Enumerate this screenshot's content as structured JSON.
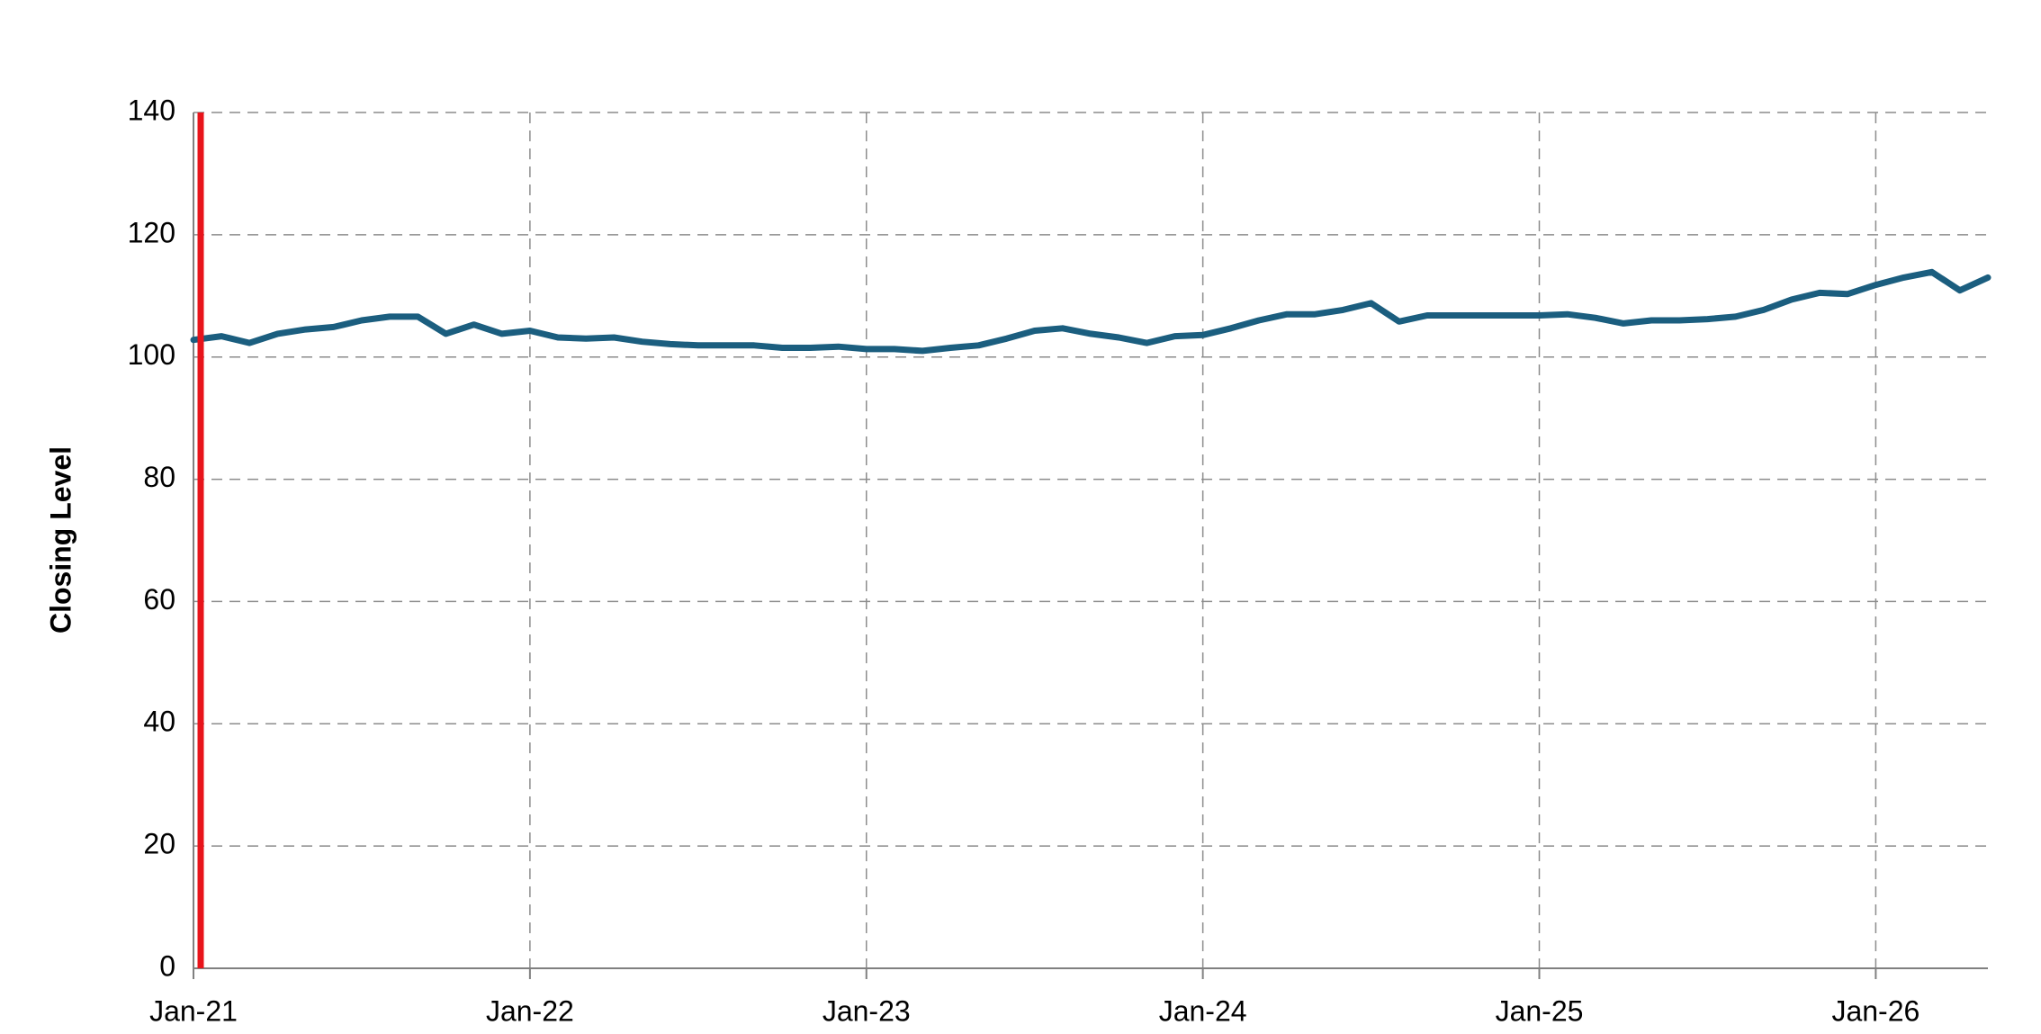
{
  "chart_data": {
    "type": "line",
    "y_label": "Closing Level",
    "x": [
      "2021-01",
      "2021-02",
      "2021-03",
      "2021-04",
      "2021-05",
      "2021-06",
      "2021-07",
      "2021-08",
      "2021-09",
      "2021-10",
      "2021-11",
      "2021-12",
      "2022-01",
      "2022-02",
      "2022-03",
      "2022-04",
      "2022-05",
      "2022-06",
      "2022-07",
      "2022-08",
      "2022-09",
      "2022-10",
      "2022-11",
      "2022-12",
      "2023-01",
      "2023-02",
      "2023-03",
      "2023-04",
      "2023-05",
      "2023-06",
      "2023-07",
      "2023-08",
      "2023-09",
      "2023-10",
      "2023-11",
      "2023-12",
      "2024-01",
      "2024-02",
      "2024-03",
      "2024-04",
      "2024-05",
      "2024-06",
      "2024-07",
      "2024-08",
      "2024-09",
      "2024-10",
      "2024-11",
      "2024-12",
      "2025-01",
      "2025-02",
      "2025-03",
      "2025-04",
      "2025-05",
      "2025-06",
      "2025-07",
      "2025-08",
      "2025-09",
      "2025-10",
      "2025-11",
      "2025-12",
      "2026-01",
      "2026-02",
      "2026-03",
      "2026-04",
      "2026-05"
    ],
    "series": [
      {
        "color": "#1b5e7f",
        "values": [
          102.8,
          103.4,
          102.3,
          103.8,
          104.5,
          104.9,
          106,
          106.6,
          106.6,
          103.8,
          105.3,
          103.8,
          104.3,
          103.2,
          103,
          103.2,
          102.5,
          102.1,
          101.9,
          101.9,
          101.9,
          101.5,
          101.5,
          101.7,
          101.3,
          101.3,
          101,
          101.5,
          101.9,
          103,
          104.3,
          104.7,
          103.8,
          103.2,
          102.3,
          103.4,
          103.6,
          104.7,
          106,
          107,
          107,
          107.7,
          108.8,
          105.8,
          106.8,
          106.8,
          106.8,
          106.8,
          106.8,
          107,
          106.4,
          105.5,
          106,
          106,
          106.2,
          106.6,
          107.7,
          109.4,
          110.5,
          110.3,
          111.8,
          113,
          113.9,
          110.9,
          113
        ]
      }
    ],
    "marker_line": {
      "x": "2021-01",
      "color": "#e8141b"
    },
    "xlim": [
      "2021-01",
      "2026-05"
    ],
    "xticks": [
      {
        "value": "2021-01",
        "label": "Jan-21"
      },
      {
        "value": "2022-01",
        "label": "Jan-22"
      },
      {
        "value": "2023-01",
        "label": "Jan-23"
      },
      {
        "value": "2024-01",
        "label": "Jan-24"
      },
      {
        "value": "2025-01",
        "label": "Jan-25"
      },
      {
        "value": "2026-01",
        "label": "Jan-26"
      }
    ],
    "ylim": [
      0,
      140
    ],
    "yticks": [
      0,
      20,
      40,
      60,
      80,
      100,
      120,
      140
    ],
    "grid": true
  }
}
